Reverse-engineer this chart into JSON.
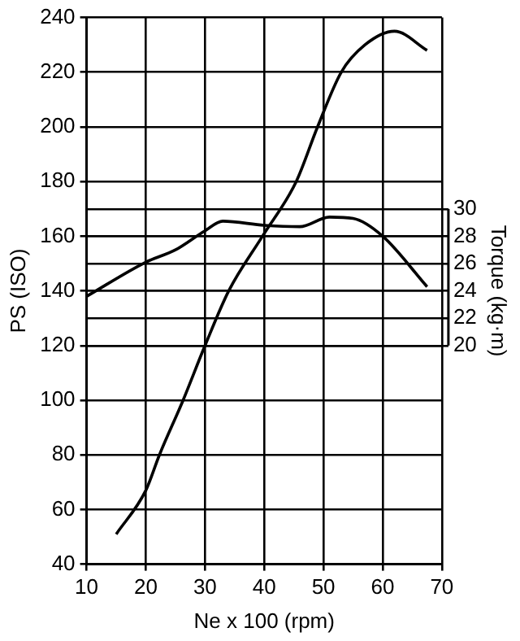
{
  "chart_data": {
    "type": "line",
    "xlabel": "Ne x 100 (rpm)",
    "ylabel": "PS (ISO)",
    "y2label": "Torque (kg·m)",
    "xlim": [
      10,
      70
    ],
    "xticks": [
      10,
      20,
      30,
      40,
      50,
      60,
      70
    ],
    "ylim": [
      40,
      240
    ],
    "yticks": [
      40,
      60,
      80,
      100,
      120,
      140,
      160,
      180,
      200,
      220,
      240
    ],
    "y2lim": [
      4,
      44
    ],
    "y2ticks": [
      20,
      22,
      24,
      26,
      28,
      30
    ],
    "grid": true,
    "series": [
      {
        "color": "#000000",
        "axis": "y",
        "x": [
          15,
          20,
          22.3,
          26.3,
          30,
          34,
          39.7,
          45.4,
          49,
          53,
          57,
          62,
          67.5
        ],
        "values": [
          51,
          67,
          80,
          100,
          120,
          140,
          160,
          180,
          200,
          220,
          230,
          235,
          228
        ]
      },
      {
        "color": "#000000",
        "axis": "y2",
        "x": [
          10,
          20,
          25,
          30,
          33,
          40,
          46,
          51,
          55,
          60,
          67.5
        ],
        "values": [
          23.6,
          26.1,
          27.0,
          28.4,
          29.1,
          28.8,
          28.7,
          29.4,
          29.3,
          28.0,
          24.3
        ]
      }
    ]
  }
}
